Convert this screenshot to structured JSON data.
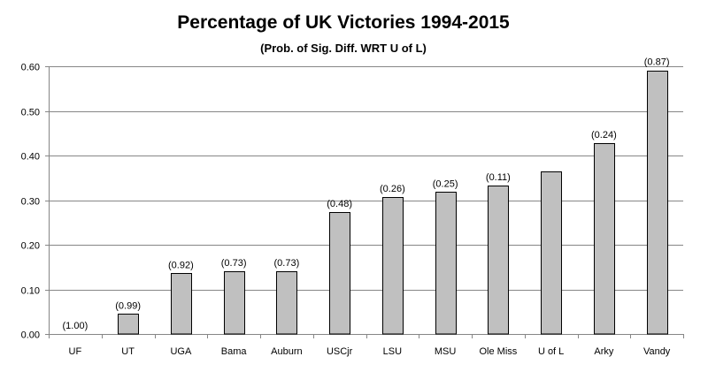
{
  "chart_data": {
    "type": "bar",
    "title": "Percentage of UK Victories 1994-2015",
    "subtitle": "(Prob. of Sig. Diff. WRT U of L)",
    "xlabel": "",
    "ylabel": "",
    "ylim": [
      0,
      0.6
    ],
    "yticks": [
      "0.00",
      "0.10",
      "0.20",
      "0.30",
      "0.40",
      "0.50",
      "0.60"
    ],
    "grid": true,
    "categories": [
      "UF",
      "UT",
      "UGA",
      "Bama",
      "Auburn",
      "USCjr",
      "LSU",
      "MSU",
      "Ole Miss",
      "U of L",
      "Arky",
      "Vandy"
    ],
    "values": [
      0.0,
      0.045,
      0.136,
      0.141,
      0.141,
      0.273,
      0.307,
      0.318,
      0.333,
      0.364,
      0.428,
      0.591
    ],
    "data_labels": [
      "(1.00)",
      "(0.99)",
      "(0.92)",
      "(0.73)",
      "(0.73)",
      "(0.48)",
      "(0.26)",
      "(0.25)",
      "(0.11)",
      "",
      "(0.24)",
      "(0.87)"
    ],
    "colors": {
      "bar_fill": "#c0c0c0",
      "bar_stroke": "#000000",
      "grid": "#868686",
      "axis": "#868686"
    }
  }
}
